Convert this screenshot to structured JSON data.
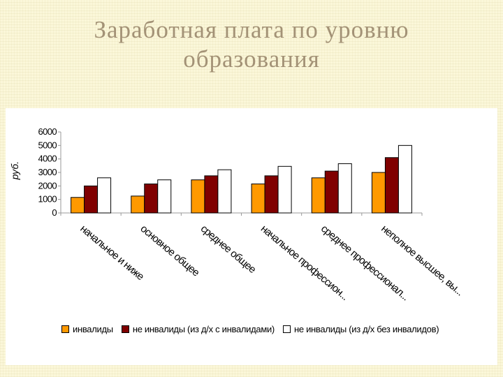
{
  "title": [
    "Заработная плата по уровню",
    "образования"
  ],
  "colors": {
    "series": [
      "#ff9900",
      "#800000",
      "#ffffff"
    ],
    "outline": "#000000",
    "axis": "#999999",
    "title": "#a39276"
  },
  "chart_data": {
    "type": "bar",
    "title": "",
    "xlabel": "",
    "ylabel": "руб.",
    "ylim": [
      0,
      6000
    ],
    "yticks": [
      0,
      1000,
      2000,
      3000,
      4000,
      5000,
      6000
    ],
    "grid": false,
    "legend": "bottom",
    "categories": [
      "начальное и ниже",
      "основное общее",
      "среднее общее",
      "начальное профессион...",
      "среднее профессионал...",
      "неполное высшее, вы..."
    ],
    "series": [
      {
        "name": "инвалиды",
        "values": [
          1150,
          1250,
          2450,
          2150,
          2600,
          3000
        ]
      },
      {
        "name": "не инвалиды (из д/х  с инвалидами)",
        "values": [
          2000,
          2150,
          2750,
          2750,
          3100,
          4100
        ]
      },
      {
        "name": "не инвалиды (из д/х  без инвалидов)",
        "values": [
          2600,
          2450,
          3200,
          3450,
          3650,
          5000
        ]
      }
    ]
  }
}
